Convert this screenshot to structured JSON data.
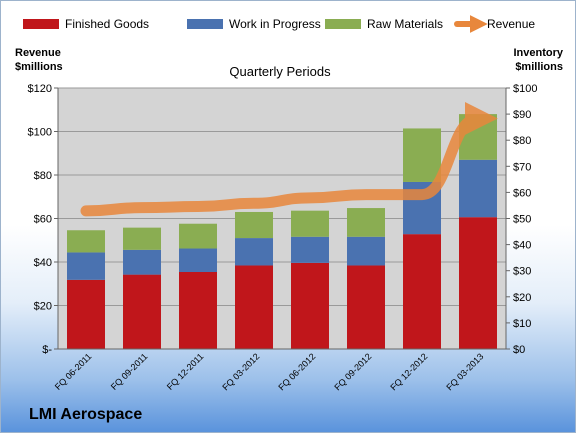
{
  "brand": "LMI Aerospace",
  "chart_data": {
    "type": "bar",
    "stacked": true,
    "title": "Quarterly Periods",
    "ylabel_left": "Revenue $millions",
    "ylabel_right": "Inventory $millions",
    "categories": [
      "FQ 06-2011",
      "FQ 09-2011",
      "FQ 12-2011",
      "FQ 03-2012",
      "FQ 06-2012",
      "FQ 09-2012",
      "FQ 12-2012",
      "FQ 03-2013"
    ],
    "left_ticks": [
      "$-",
      "$20",
      "$40",
      "$60",
      "$80",
      "$100",
      "$120"
    ],
    "right_ticks": [
      "$0",
      "$10",
      "$20",
      "$30",
      "$40",
      "$50",
      "$60",
      "$70",
      "$80",
      "$90",
      "$100"
    ],
    "left_axis_range": [
      0,
      120
    ],
    "right_axis_range": [
      0,
      100
    ],
    "series": [
      {
        "name": "Finished Goods",
        "axis": "right",
        "color": "#c0161b",
        "values": [
          26.5,
          28.5,
          29.5,
          32,
          33,
          32,
          44,
          50.5
        ]
      },
      {
        "name": "Work in Progress",
        "axis": "right",
        "color": "#4a72b0",
        "values": [
          10.5,
          9.5,
          9,
          10.5,
          10,
          11,
          20,
          22
        ]
      },
      {
        "name": "Raw Materials",
        "axis": "right",
        "color": "#8aad52",
        "values": [
          8.5,
          8.5,
          9.5,
          10,
          10,
          11,
          20.5,
          17.5
        ]
      },
      {
        "name": "Revenue",
        "axis": "left",
        "type": "line",
        "color": "#e8873c",
        "values": [
          63.5,
          65,
          65.5,
          67,
          69.5,
          71,
          71,
          106
        ]
      }
    ],
    "legend_position": "top",
    "grid": true
  }
}
